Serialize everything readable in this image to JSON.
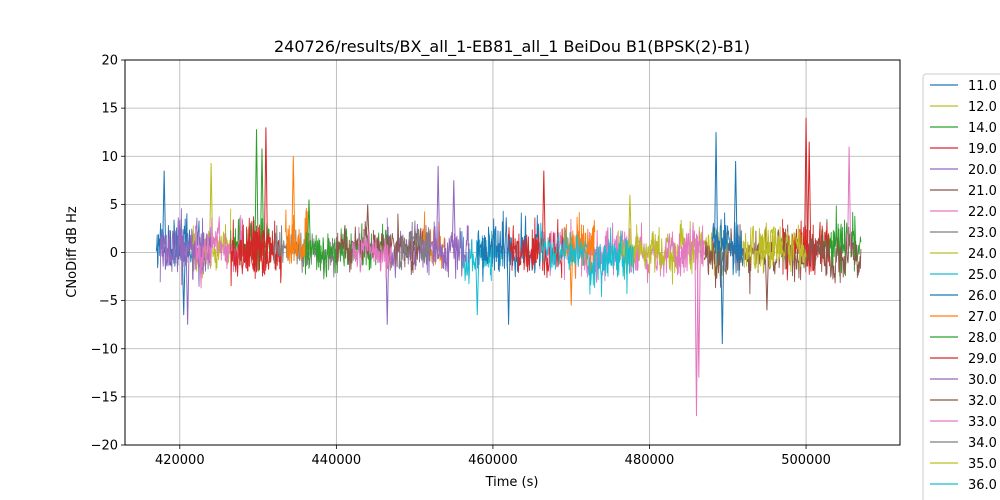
{
  "chart_data": {
    "type": "line",
    "title": "240726/results/BX_all_1-EB81_all_1 BeiDou B1(BPSK(2)-B1)",
    "xlabel": "Time (s)",
    "ylabel": "CNoDiff dB Hz",
    "xlim": [
      413000,
      512000
    ],
    "ylim": [
      -20,
      20
    ],
    "x_ticks": [
      420000,
      440000,
      460000,
      480000,
      500000
    ],
    "x_tick_labels": [
      "420000",
      "440000",
      "460000",
      "480000",
      "500000"
    ],
    "y_ticks": [
      -20,
      -15,
      -10,
      -5,
      0,
      5,
      10,
      15,
      20
    ],
    "y_tick_labels": [
      "−20",
      "−15",
      "−10",
      "−5",
      "0",
      "5",
      "10",
      "15",
      "20"
    ],
    "grid": true,
    "legend_position": "right, outside plot",
    "series": [
      {
        "name": "11.0",
        "color": "#1f77b4",
        "segments": [
          [
            417000,
            423000
          ]
        ],
        "mean": 0.3,
        "amp": 3.5,
        "spikes": [
          [
            418000,
            8.5
          ],
          [
            420500,
            -6.5
          ]
        ]
      },
      {
        "name": "12.0",
        "color": "#bcbd22",
        "segments": [
          [
            421500,
            426500
          ],
          [
            482000,
            490000
          ]
        ],
        "mean": 0.5,
        "amp": 3.0,
        "spikes": [
          [
            424000,
            9.3
          ]
        ]
      },
      {
        "name": "14.0",
        "color": "#2ca02c",
        "segments": [
          [
            426500,
            431500
          ],
          [
            502000,
            507000
          ]
        ],
        "mean": 0.8,
        "amp": 3.5,
        "spikes": [
          [
            429800,
            12.8
          ],
          [
            430500,
            10.8
          ]
        ]
      },
      {
        "name": "19.0",
        "color": "#d62728",
        "segments": [
          [
            428000,
            433000
          ],
          [
            497000,
            503000
          ]
        ],
        "mean": 0.5,
        "amp": 3.5,
        "spikes": [
          [
            431000,
            13.0
          ],
          [
            500000,
            14.0
          ],
          [
            500400,
            11.5
          ]
        ]
      },
      {
        "name": "20.0",
        "color": "#9467bd",
        "segments": [
          [
            417500,
            424000
          ]
        ],
        "mean": 0.5,
        "amp": 3.5,
        "spikes": [
          [
            421000,
            -7.5
          ]
        ]
      },
      {
        "name": "21.0",
        "color": "#8c564b",
        "segments": [
          [
            487000,
            507000
          ]
        ],
        "mean": -0.3,
        "amp": 2.8,
        "spikes": [
          [
            495000,
            -6.0
          ]
        ]
      },
      {
        "name": "22.0",
        "color": "#e377c2",
        "segments": [
          [
            422000,
            428000
          ],
          [
            466000,
            487000
          ]
        ],
        "mean": 0.3,
        "amp": 2.8,
        "spikes": [
          [
            486000,
            -17.0
          ],
          [
            486300,
            -13.0
          ],
          [
            505500,
            11.0
          ]
        ]
      },
      {
        "name": "23.0",
        "color": "#7f7f7f",
        "segments": [
          [
            432000,
            440000
          ]
        ],
        "mean": 0.0,
        "amp": 2.5,
        "spikes": []
      },
      {
        "name": "24.0",
        "color": "#bcbd22",
        "segments": [
          [
            476000,
            482000
          ],
          [
            492000,
            500000
          ]
        ],
        "mean": 0.5,
        "amp": 2.8,
        "spikes": [
          [
            477500,
            6.0
          ]
        ]
      },
      {
        "name": "25.0",
        "color": "#17becf",
        "segments": [
          [
            456000,
            461000
          ],
          [
            472000,
            478000
          ]
        ],
        "mean": -0.5,
        "amp": 3.0,
        "spikes": [
          [
            458000,
            -6.5
          ]
        ]
      },
      {
        "name": "26.0",
        "color": "#1f77b4",
        "segments": [
          [
            458000,
            466000
          ],
          [
            488000,
            492000
          ]
        ],
        "mean": 0.5,
        "amp": 3.5,
        "spikes": [
          [
            488500,
            12.5
          ],
          [
            489300,
            -9.5
          ],
          [
            491000,
            9.5
          ],
          [
            462000,
            -7.5
          ]
        ]
      },
      {
        "name": "27.0",
        "color": "#ff7f0e",
        "segments": [
          [
            433500,
            436500
          ],
          [
            451000,
            454000
          ],
          [
            469000,
            473000
          ]
        ],
        "mean": 1.0,
        "amp": 3.0,
        "spikes": [
          [
            434500,
            10.0
          ],
          [
            470000,
            -5.5
          ]
        ]
      },
      {
        "name": "28.0",
        "color": "#2ca02c",
        "segments": [
          [
            436000,
            447000
          ]
        ],
        "mean": 0.2,
        "amp": 2.5,
        "spikes": [
          [
            436500,
            5.5
          ]
        ]
      },
      {
        "name": "29.0",
        "color": "#d62728",
        "segments": [
          [
            426500,
            432000
          ],
          [
            462000,
            469000
          ]
        ],
        "mean": 0.0,
        "amp": 3.2,
        "spikes": [
          [
            466500,
            8.5
          ]
        ]
      },
      {
        "name": "30.0",
        "color": "#9467bd",
        "segments": [
          [
            446500,
            457000
          ]
        ],
        "mean": 0.5,
        "amp": 3.0,
        "spikes": [
          [
            453000,
            9.0
          ],
          [
            455000,
            7.5
          ],
          [
            446500,
            -7.5
          ]
        ]
      },
      {
        "name": "32.0",
        "color": "#8c564b",
        "segments": [
          [
            440000,
            451000
          ]
        ],
        "mean": 0.8,
        "amp": 2.5,
        "spikes": [
          [
            444000,
            5.0
          ]
        ]
      },
      {
        "name": "33.0",
        "color": "#e377c2",
        "segments": [
          [
            442000,
            447000
          ]
        ],
        "mean": 0.0,
        "amp": 2.3,
        "spikes": []
      },
      {
        "name": "34.0",
        "color": "#7f7f7f",
        "segments": [
          [
            448000,
            452000
          ]
        ],
        "mean": 0.3,
        "amp": 2.3,
        "spikes": []
      },
      {
        "name": "35.0",
        "color": "#bcbd22",
        "segments": [
          [
            494000,
            497000
          ]
        ],
        "mean": 0.5,
        "amp": 2.5,
        "spikes": []
      },
      {
        "name": "36.0",
        "color": "#17becf",
        "segments": [
          [
            466000,
            472000
          ]
        ],
        "mean": 0.0,
        "amp": 2.5,
        "spikes": []
      }
    ]
  }
}
